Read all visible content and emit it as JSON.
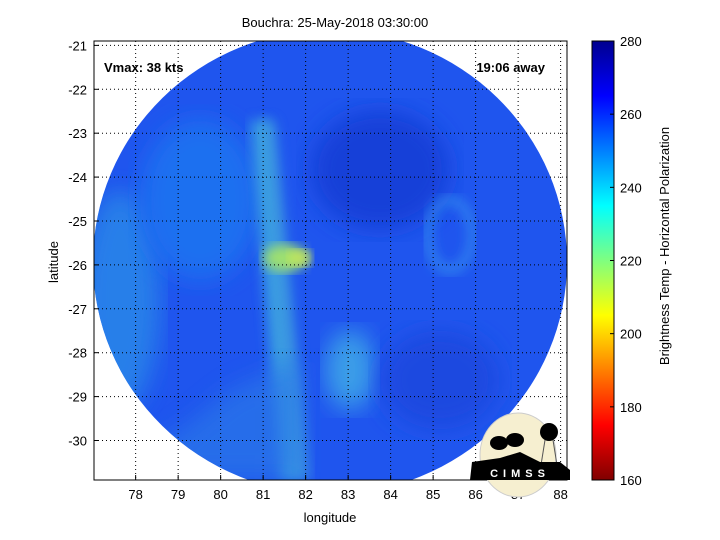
{
  "chart_data": {
    "type": "heatmap",
    "title": "Bouchra: 25-May-2018 03:30:00",
    "xlabel": "longitude",
    "ylabel": "latitude",
    "xlim": [
      77.02,
      88.15
    ],
    "ylim": [
      -30.9,
      -20.9
    ],
    "xticks": [
      78,
      79,
      80,
      81,
      82,
      83,
      84,
      85,
      86,
      87,
      88
    ],
    "yticks": [
      -21,
      -22,
      -23,
      -24,
      -25,
      -26,
      -27,
      -28,
      -29,
      -30
    ],
    "grid": true,
    "colormap": "jet",
    "colorbar": {
      "label": "Brightness Temp - Horizontal Polarization",
      "range": [
        160,
        280
      ],
      "ticks": [
        160,
        180,
        200,
        220,
        240,
        260,
        280
      ],
      "placement": "right"
    },
    "annotations": {
      "vmax": "Vmax: 38 kts",
      "time_away": "19:06 away"
    },
    "logo": "CIMSS"
  }
}
